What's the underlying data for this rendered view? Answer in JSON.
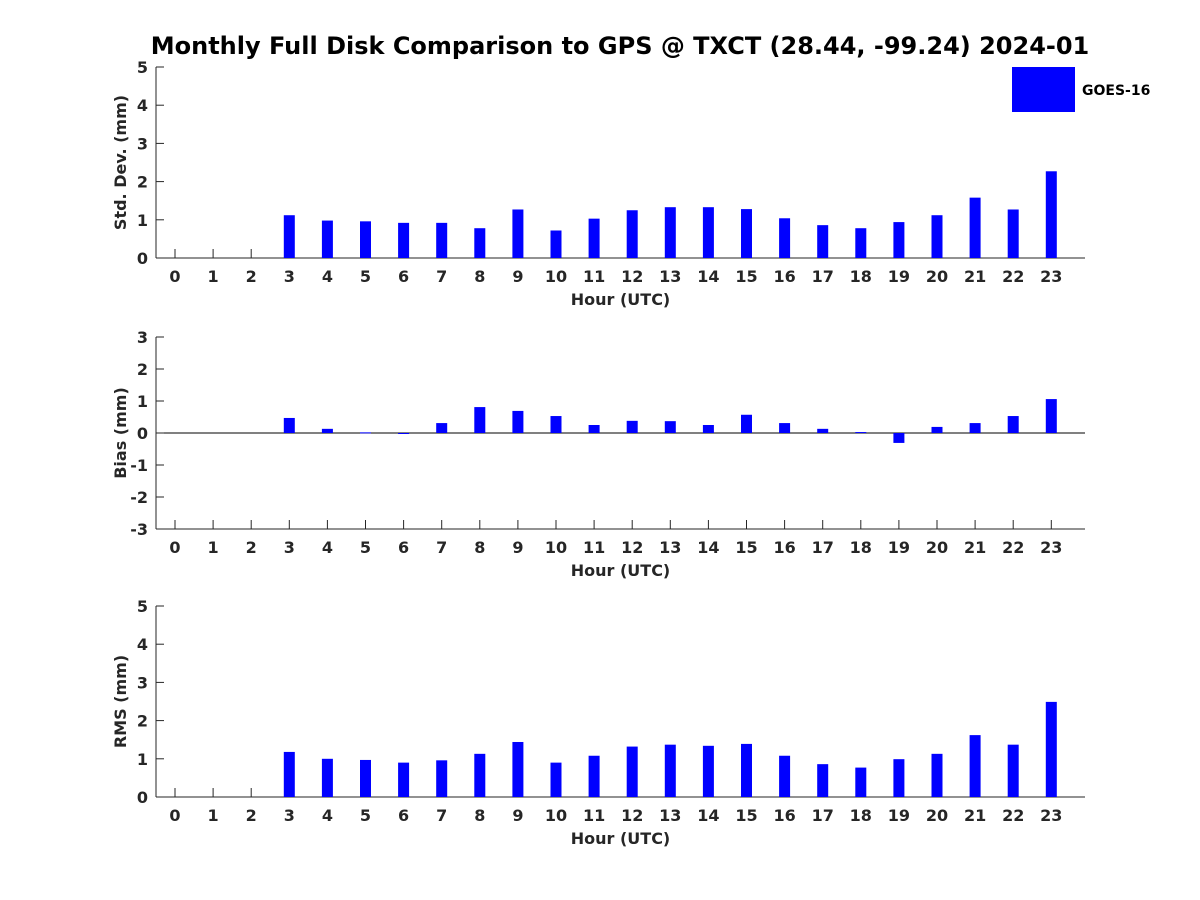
{
  "title": "Monthly Full Disk Comparison to GPS @ TXCT (28.44, -99.24) 2024-01",
  "colors": {
    "bar": "#0000ff",
    "axis": "#262626",
    "background": "#ffffff"
  },
  "legend": {
    "label": "GOES-16",
    "placement": "top-right"
  },
  "chart_data": [
    {
      "type": "bar",
      "xlabel": "Hour (UTC)",
      "ylabel": "Std. Dev. (mm)",
      "ylim": [
        0,
        5
      ],
      "yticks": [
        0,
        1,
        2,
        3,
        4,
        5
      ],
      "categories": [
        "0",
        "1",
        "2",
        "3",
        "4",
        "5",
        "6",
        "7",
        "8",
        "9",
        "10",
        "11",
        "12",
        "13",
        "14",
        "15",
        "16",
        "17",
        "18",
        "19",
        "20",
        "21",
        "22",
        "23"
      ],
      "series": [
        {
          "name": "GOES-16",
          "values": [
            null,
            null,
            null,
            1.12,
            0.98,
            0.96,
            0.92,
            0.92,
            0.78,
            1.27,
            0.72,
            1.03,
            1.25,
            1.33,
            1.33,
            1.28,
            1.04,
            0.86,
            0.78,
            0.94,
            1.12,
            1.58,
            1.27,
            2.27
          ]
        }
      ]
    },
    {
      "type": "bar",
      "xlabel": "Hour (UTC)",
      "ylabel": "Bias (mm)",
      "ylim": [
        -3,
        3
      ],
      "yticks": [
        -3,
        -2,
        -1,
        0,
        1,
        2,
        3
      ],
      "categories": [
        "0",
        "1",
        "2",
        "3",
        "4",
        "5",
        "6",
        "7",
        "8",
        "9",
        "10",
        "11",
        "12",
        "13",
        "14",
        "15",
        "16",
        "17",
        "18",
        "19",
        "20",
        "21",
        "22",
        "23"
      ],
      "series": [
        {
          "name": "GOES-16",
          "values": [
            null,
            null,
            null,
            0.47,
            0.13,
            0.02,
            -0.03,
            0.31,
            0.81,
            0.69,
            0.53,
            0.25,
            0.38,
            0.37,
            0.25,
            0.57,
            0.31,
            0.13,
            0.03,
            -0.31,
            0.19,
            0.31,
            0.53,
            1.06
          ]
        }
      ]
    },
    {
      "type": "bar",
      "xlabel": "Hour (UTC)",
      "ylabel": "RMS (mm)",
      "ylim": [
        0,
        5
      ],
      "yticks": [
        0,
        1,
        2,
        3,
        4,
        5
      ],
      "categories": [
        "0",
        "1",
        "2",
        "3",
        "4",
        "5",
        "6",
        "7",
        "8",
        "9",
        "10",
        "11",
        "12",
        "13",
        "14",
        "15",
        "16",
        "17",
        "18",
        "19",
        "20",
        "21",
        "22",
        "23"
      ],
      "series": [
        {
          "name": "GOES-16",
          "values": [
            null,
            null,
            null,
            1.18,
            1.0,
            0.97,
            0.9,
            0.96,
            1.13,
            1.44,
            0.9,
            1.08,
            1.32,
            1.37,
            1.34,
            1.39,
            1.08,
            0.86,
            0.77,
            0.99,
            1.13,
            1.62,
            1.37,
            2.49
          ]
        }
      ]
    }
  ]
}
